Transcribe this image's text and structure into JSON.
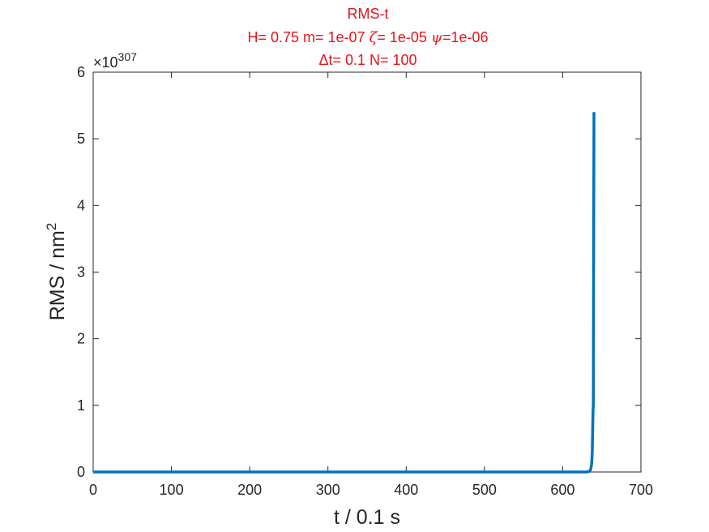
{
  "chart_data": {
    "type": "line",
    "title": {
      "line1": "RMS-t",
      "line2_parts": [
        "H= 0.75 m= 1e-07 ",
        "ζ",
        "= 1e-05 ",
        "ψ",
        "=1e-06"
      ],
      "line3_parts": [
        "Δ",
        "t= 0.1 N= 100"
      ]
    },
    "xlabel": "t / 0.1 s",
    "ylabel": "RMS / nm",
    "ylabel_superscript": "2",
    "y_exponent": {
      "base": "×10",
      "power": "307"
    },
    "xlim": [
      0,
      700
    ],
    "ylim": [
      0,
      6
    ],
    "x_ticks": [
      "0",
      "100",
      "200",
      "300",
      "400",
      "500",
      "600",
      "700"
    ],
    "y_ticks": [
      "0",
      "1",
      "2",
      "3",
      "4",
      "5",
      "6"
    ],
    "grid": false,
    "series": [
      {
        "color": "#0072bd",
        "x": [
          0,
          100,
          200,
          300,
          400,
          500,
          600,
          630,
          633,
          635,
          636,
          637,
          637.8,
          638.4,
          638.9,
          639.2,
          639.5,
          640
        ],
        "y": [
          0,
          0,
          0,
          0,
          0,
          0,
          0,
          0,
          0.005,
          0.02,
          0.05,
          0.12,
          0.3,
          0.7,
          0.95,
          1.0,
          3.0,
          5.4
        ]
      }
    ]
  }
}
